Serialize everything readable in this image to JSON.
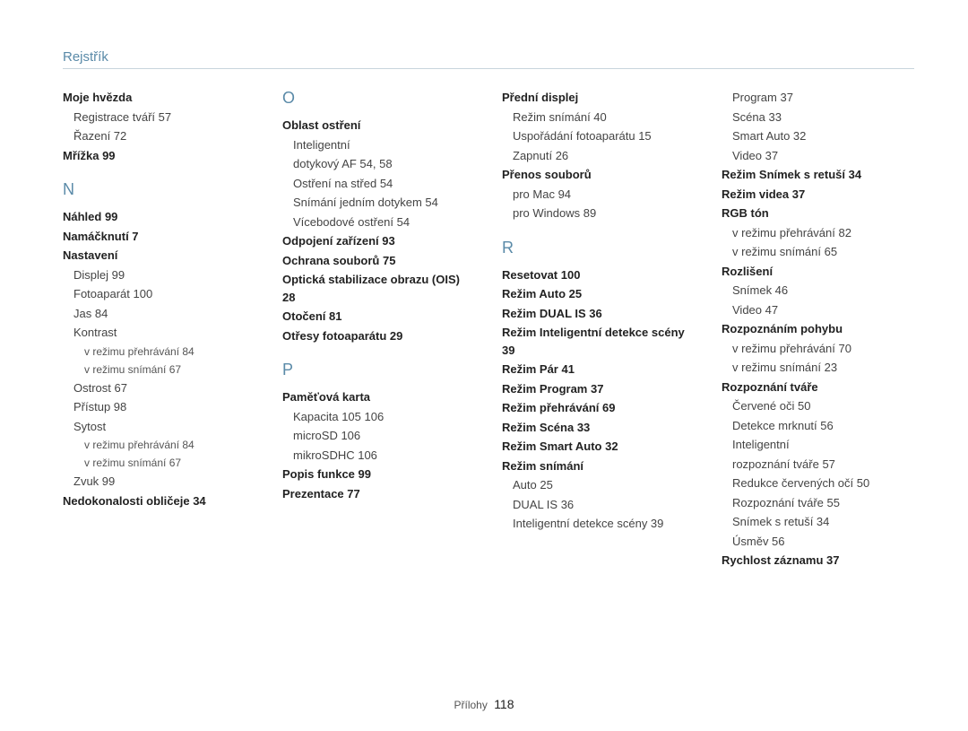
{
  "header": "Rejstřík",
  "footer": {
    "label": "Přílohy",
    "page": "118"
  },
  "cols": [
    [
      {
        "type": "bold",
        "text": "Moje hvězda"
      },
      {
        "type": "sub",
        "text": "Registrace tváří  57"
      },
      {
        "type": "sub",
        "text": "Řazení  72"
      },
      {
        "type": "bold",
        "text": "Mřížka  99"
      },
      {
        "type": "letter",
        "text": "N"
      },
      {
        "type": "bold",
        "text": "Náhled  99"
      },
      {
        "type": "bold",
        "text": "Namáčknutí  7"
      },
      {
        "type": "bold",
        "text": "Nastavení"
      },
      {
        "type": "sub",
        "text": "Displej  99"
      },
      {
        "type": "sub",
        "text": "Fotoaparát  100"
      },
      {
        "type": "sub",
        "text": "Jas  84"
      },
      {
        "type": "sub",
        "text": "Kontrast"
      },
      {
        "type": "sub2",
        "text": "v režimu přehrávání  84"
      },
      {
        "type": "sub2",
        "text": "v režimu snímání  67"
      },
      {
        "type": "sub",
        "text": "Ostrost  67"
      },
      {
        "type": "sub",
        "text": "Přístup  98"
      },
      {
        "type": "sub",
        "text": "Sytost"
      },
      {
        "type": "sub2",
        "text": "v režimu přehrávání  84"
      },
      {
        "type": "sub2",
        "text": "v režimu snímání  67"
      },
      {
        "type": "sub",
        "text": "Zvuk  99"
      },
      {
        "type": "bold",
        "text": "Nedokonalosti obličeje  34"
      }
    ],
    [
      {
        "type": "letter",
        "text": "O"
      },
      {
        "type": "bold",
        "text": "Oblast ostření"
      },
      {
        "type": "sub",
        "text": "Inteligentní"
      },
      {
        "type": "sub",
        "text": "dotykový AF  54, 58"
      },
      {
        "type": "sub",
        "text": "Ostření na střed  54"
      },
      {
        "type": "sub",
        "text": "Snímání jedním dotykem  54"
      },
      {
        "type": "sub",
        "text": "Vícebodové ostření  54"
      },
      {
        "type": "bold",
        "text": "Odpojení zařízení  93"
      },
      {
        "type": "bold",
        "text": "Ochrana souborů  75"
      },
      {
        "type": "bold",
        "text": "Optická stabilizace obrazu (OIS)  28"
      },
      {
        "type": "bold",
        "text": "Otočení  81"
      },
      {
        "type": "bold",
        "text": "Otřesy fotoaparátu  29"
      },
      {
        "type": "letter",
        "text": "P"
      },
      {
        "type": "bold",
        "text": "Paměťová karta"
      },
      {
        "type": "sub",
        "text": "Kapacita 105  106"
      },
      {
        "type": "sub",
        "text": "microSD  106"
      },
      {
        "type": "sub",
        "text": "mikroSDHC  106"
      },
      {
        "type": "bold",
        "text": "Popis funkce  99"
      },
      {
        "type": "bold",
        "text": "Prezentace  77"
      }
    ],
    [
      {
        "type": "bold",
        "text": "Přední displej"
      },
      {
        "type": "sub",
        "text": "Režim snímání  40"
      },
      {
        "type": "sub",
        "text": "Uspořádání fotoaparátu  15"
      },
      {
        "type": "sub",
        "text": "Zapnutí  26"
      },
      {
        "type": "bold",
        "text": "Přenos souborů"
      },
      {
        "type": "sub",
        "text": "pro Mac  94"
      },
      {
        "type": "sub",
        "text": "pro Windows  89"
      },
      {
        "type": "letter",
        "text": "R"
      },
      {
        "type": "bold",
        "text": "Resetovat  100"
      },
      {
        "type": "bold",
        "text": "Režim Auto  25"
      },
      {
        "type": "bold",
        "text": "Režim DUAL IS  36"
      },
      {
        "type": "bold",
        "text": "Režim Inteligentní detekce scény  39"
      },
      {
        "type": "bold",
        "text": "Režim Pár  41"
      },
      {
        "type": "bold",
        "text": "Režim Program  37"
      },
      {
        "type": "bold",
        "text": "Režim přehrávání  69"
      },
      {
        "type": "bold",
        "text": "Režim Scéna  33"
      },
      {
        "type": "bold",
        "text": "Režim Smart Auto  32"
      },
      {
        "type": "bold",
        "text": "Režim snímání"
      },
      {
        "type": "sub",
        "text": "Auto  25"
      },
      {
        "type": "sub",
        "text": "DUAL IS  36"
      },
      {
        "type": "sub",
        "text": "Inteligentní detekce scény  39"
      }
    ],
    [
      {
        "type": "sub",
        "text": "Program  37"
      },
      {
        "type": "sub",
        "text": "Scéna  33"
      },
      {
        "type": "sub",
        "text": "Smart Auto  32"
      },
      {
        "type": "sub",
        "text": "Video  37"
      },
      {
        "type": "bold",
        "text": "Režim Snímek s retuší  34"
      },
      {
        "type": "bold",
        "text": "Režim videa  37"
      },
      {
        "type": "bold",
        "text": "RGB tón"
      },
      {
        "type": "sub",
        "text": "v režimu přehrávání  82"
      },
      {
        "type": "sub",
        "text": "v režimu snímání  65"
      },
      {
        "type": "bold",
        "text": "Rozlišení"
      },
      {
        "type": "sub",
        "text": "Snímek  46"
      },
      {
        "type": "sub",
        "text": "Video  47"
      },
      {
        "type": "bold",
        "text": "Rozpoznáním pohybu"
      },
      {
        "type": "sub",
        "text": "v režimu přehrávání  70"
      },
      {
        "type": "sub",
        "text": "v režimu snímání  23"
      },
      {
        "type": "bold",
        "text": "Rozpoznání tváře"
      },
      {
        "type": "sub",
        "text": "Červené oči  50"
      },
      {
        "type": "sub",
        "text": "Detekce mrknutí  56"
      },
      {
        "type": "sub",
        "text": "Inteligentní"
      },
      {
        "type": "sub",
        "text": "rozpoznání tváře  57"
      },
      {
        "type": "sub",
        "text": "Redukce červených očí  50"
      },
      {
        "type": "sub",
        "text": "Rozpoznání tváře  55"
      },
      {
        "type": "sub",
        "text": "Snímek s retuší  34"
      },
      {
        "type": "sub",
        "text": "Úsměv  56"
      },
      {
        "type": "bold",
        "text": "Rychlost záznamu  37"
      }
    ]
  ]
}
